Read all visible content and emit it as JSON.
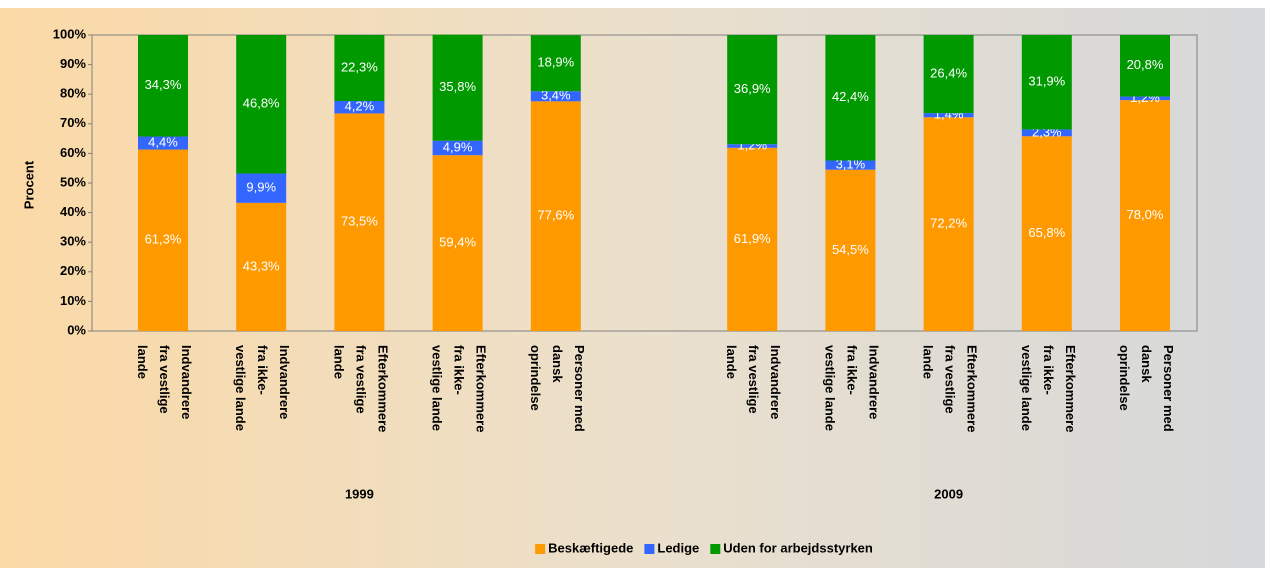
{
  "chart_data": {
    "type": "stacked-bar",
    "y_label": "Procent",
    "categories": [
      "Indvandrere fra vestlige lande",
      "Indvandrere fra ikke-vestlige lande",
      "Efterkommere fra vestlige lande",
      "Efterkommere fra ikke-vestlige lande",
      "Personer med dansk oprindelse",
      null,
      "Indvandrere fra vestlige lande",
      "Indvandrere fra ikke-vestlige lande",
      "Efterkommere fra vestlige lande",
      "Efterkommere fra ikke-vestlige lande",
      "Personer med dansk oprindelse"
    ],
    "groups": [
      {
        "label": "1999",
        "from": 0,
        "to": 4
      },
      {
        "label": "2009",
        "from": 6,
        "to": 10
      }
    ],
    "series": [
      {
        "name": "Beskæftigede",
        "color": "#ff9900",
        "values": [
          61.3,
          43.3,
          73.5,
          59.4,
          77.6,
          null,
          61.9,
          54.5,
          72.2,
          65.8,
          78.0
        ],
        "value_labels": [
          "61,3%",
          "43,3%",
          "73,5%",
          "59,4%",
          "77,6%",
          null,
          "61,9%",
          "54,5%",
          "72,2%",
          "65,8%",
          "78,0%"
        ]
      },
      {
        "name": "Ledige",
        "color": "#3366ff",
        "values": [
          4.4,
          9.9,
          4.2,
          4.9,
          3.4,
          null,
          1.2,
          3.1,
          1.4,
          2.3,
          1.2
        ],
        "value_labels": [
          "4,4%",
          "9,9%",
          "4,2%",
          "4,9%",
          "3,4%",
          null,
          "1,2%",
          "3,1%",
          "1,4%",
          "2,3%",
          "1,2%"
        ]
      },
      {
        "name": "Uden for arbejdsstyrken",
        "color": "#009900",
        "values": [
          34.3,
          46.8,
          22.3,
          35.8,
          18.9,
          null,
          36.9,
          42.4,
          26.4,
          31.9,
          20.8
        ],
        "value_labels": [
          "34,3%",
          "46,8%",
          "22,3%",
          "35,8%",
          "18,9%",
          null,
          "36,9%",
          "42,4%",
          "26,4%",
          "31,9%",
          "20,8%"
        ]
      }
    ],
    "ylim": [
      0,
      100
    ],
    "yticks": [
      {
        "value": 0,
        "label": "0%"
      },
      {
        "value": 10,
        "label": "10%"
      },
      {
        "value": 20,
        "label": "20%"
      },
      {
        "value": 30,
        "label": "30%"
      },
      {
        "value": 40,
        "label": "40%"
      },
      {
        "value": 50,
        "label": "50%"
      },
      {
        "value": 60,
        "label": "60%"
      },
      {
        "value": 70,
        "label": "70%"
      },
      {
        "value": 80,
        "label": "80%"
      },
      {
        "value": 90,
        "label": "90%"
      },
      {
        "value": 100,
        "label": "100%"
      }
    ],
    "legend": "bottom"
  }
}
